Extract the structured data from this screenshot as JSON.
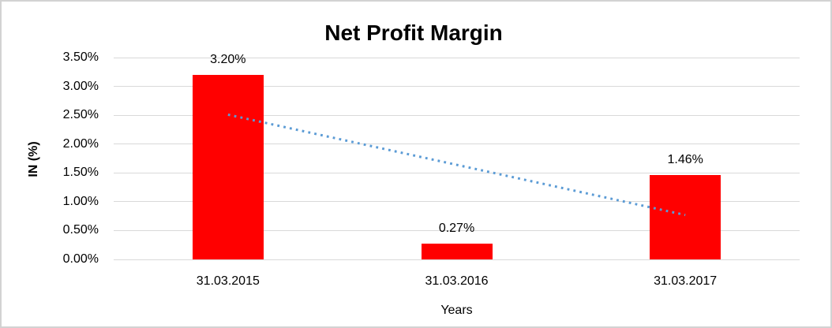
{
  "window": {
    "background_color": "#FFFFFF",
    "border_color": "#D2D2D2"
  },
  "chart_data": {
    "type": "bar",
    "title": "Net Profit Margin",
    "xlabel": "Years",
    "ylabel": "IN (%)",
    "categories": [
      "31.03.2015",
      "31.03.2016",
      "31.03.2017"
    ],
    "values": [
      3.2,
      0.27,
      1.46
    ],
    "data_labels": [
      "3.20%",
      "0.27%",
      "1.46%"
    ],
    "ylim": [
      0,
      3.5
    ],
    "yticks": [
      {
        "label": "0.00%",
        "value": 0.0
      },
      {
        "label": "0.50%",
        "value": 0.5
      },
      {
        "label": "1.00%",
        "value": 1.0
      },
      {
        "label": "1.50%",
        "value": 1.5
      },
      {
        "label": "2.00%",
        "value": 2.0
      },
      {
        "label": "2.50%",
        "value": 2.5
      },
      {
        "label": "3.00%",
        "value": 3.0
      },
      {
        "label": "3.50%",
        "value": 3.5
      }
    ],
    "grid": true,
    "legend": "none",
    "bar_color": "#FF0000",
    "gridline_color": "#D9D9D9",
    "text_color": "#000000",
    "trendline": {
      "type": "linear",
      "style": "dotted",
      "color": "#5B9BD5",
      "start_value": 2.51,
      "end_value": 0.77
    }
  }
}
